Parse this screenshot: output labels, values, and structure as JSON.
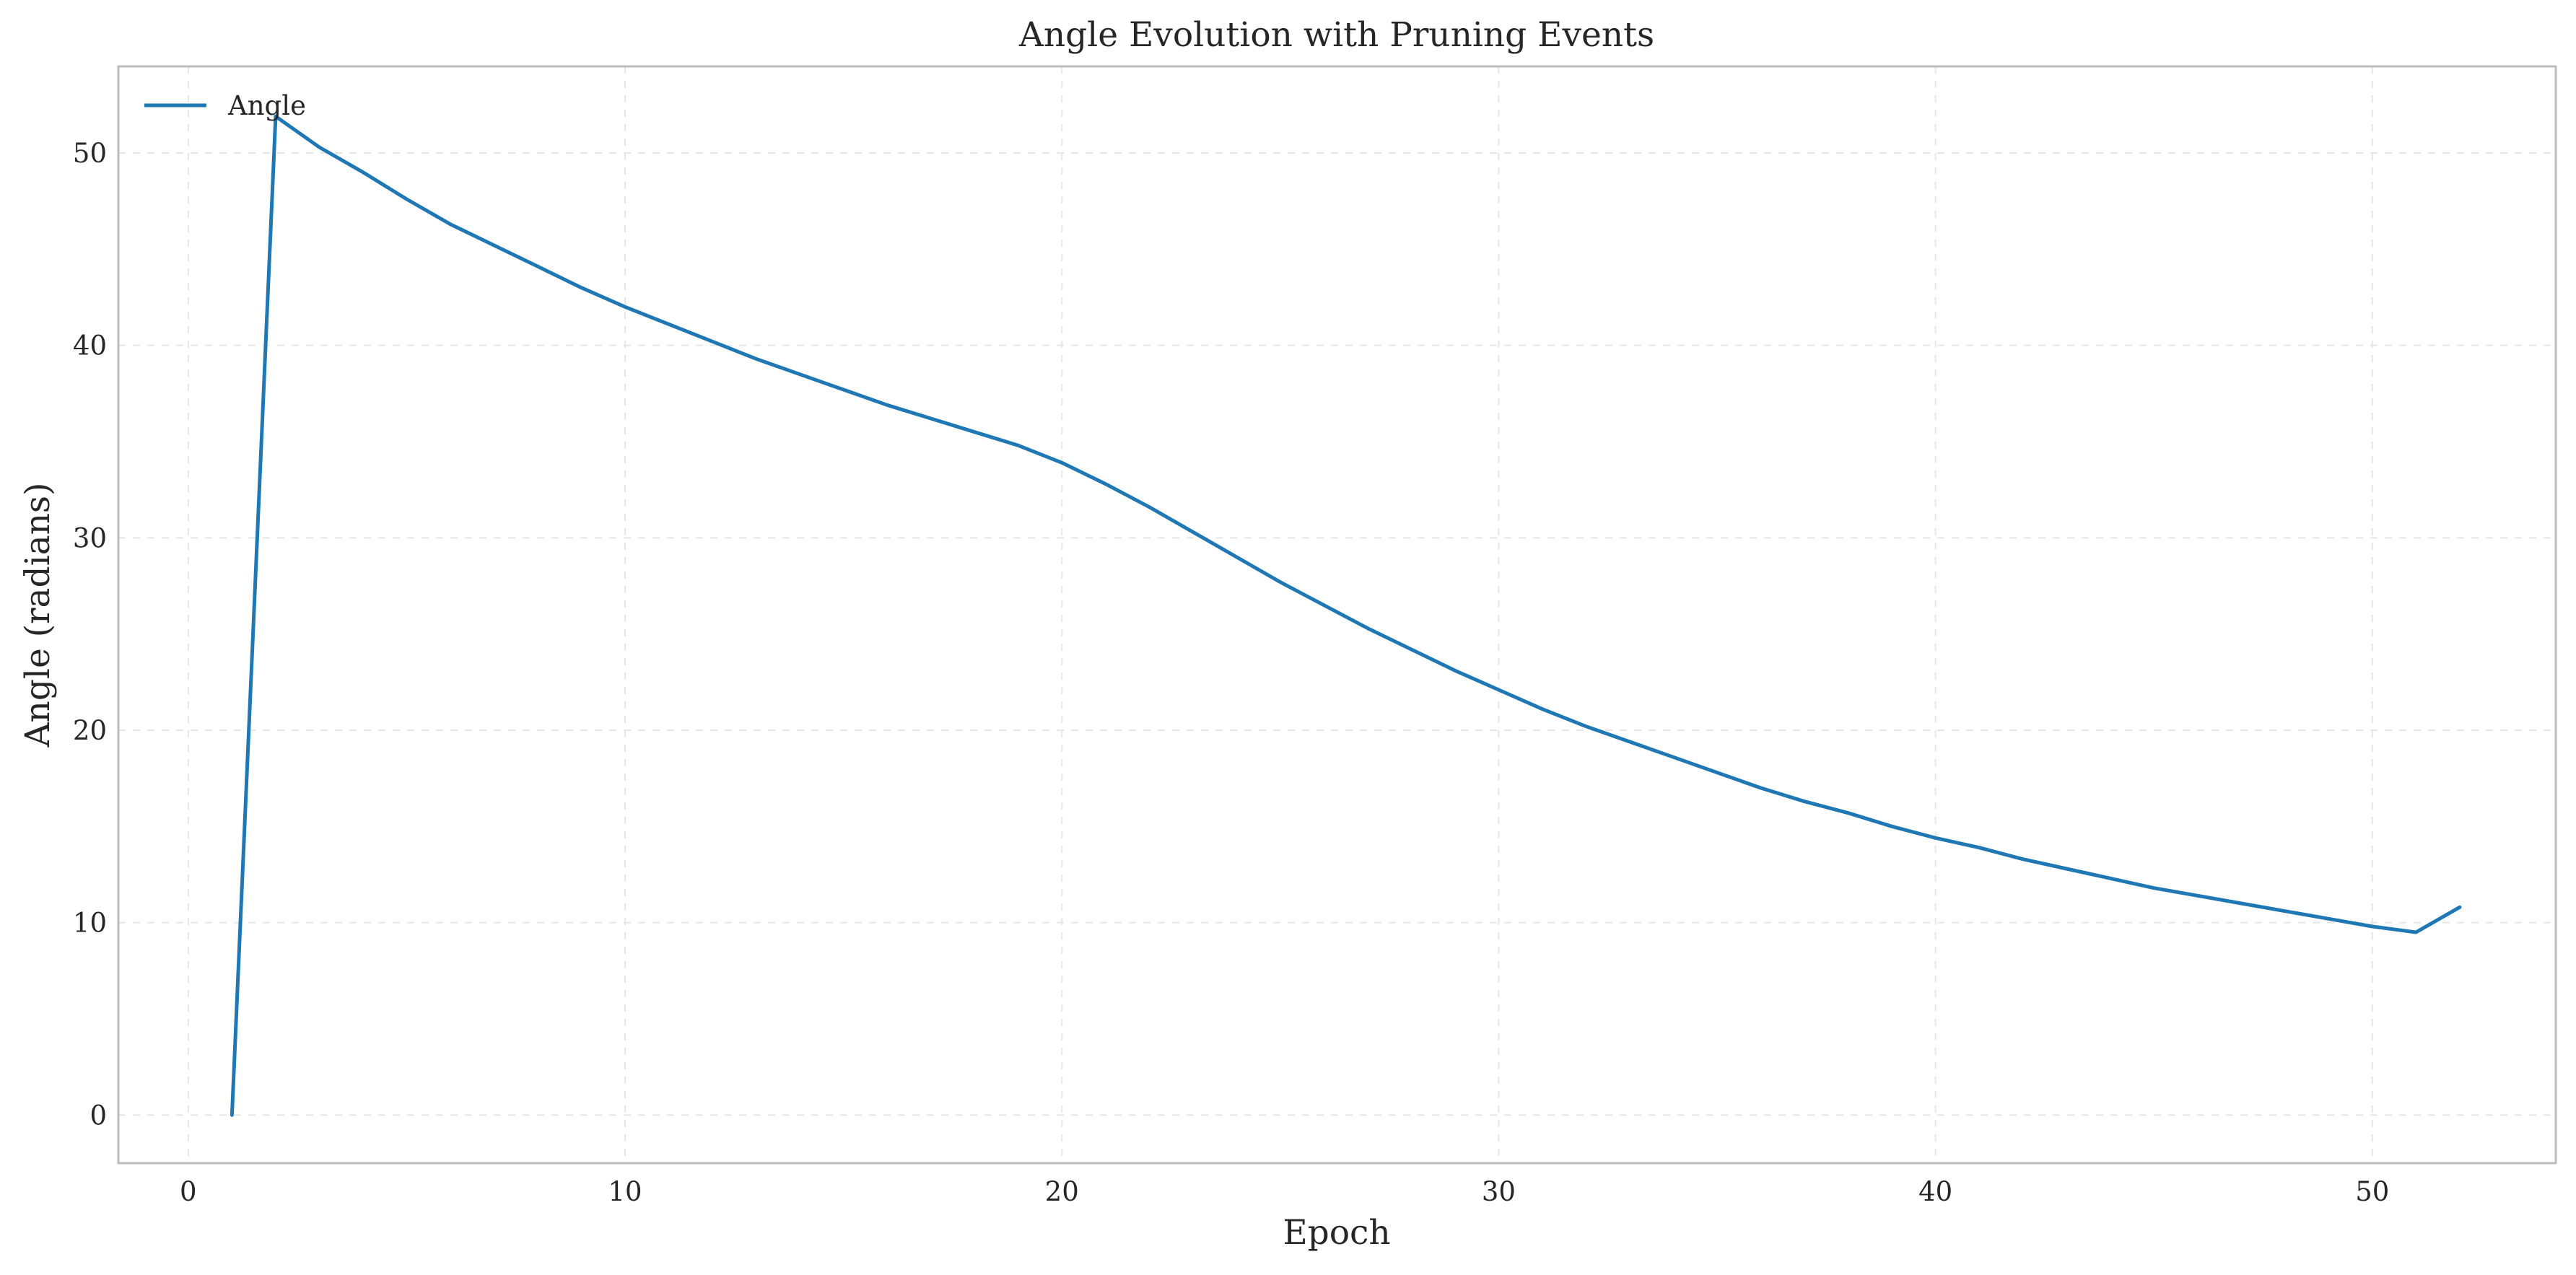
{
  "chart_data": {
    "type": "line",
    "title": "Angle Evolution with Pruning Events",
    "xlabel": "Epoch",
    "ylabel": "Angle (radians)",
    "xlim": [
      -1.6,
      54.2
    ],
    "ylim": [
      -2.5,
      54.5
    ],
    "xticks": [
      0,
      10,
      20,
      30,
      40,
      50
    ],
    "yticks": [
      0,
      10,
      20,
      30,
      40,
      50
    ],
    "grid": true,
    "legend": "upper left",
    "series": [
      {
        "name": "Angle",
        "color": "#1f77b4",
        "x": [
          1,
          2,
          3,
          4,
          5,
          6,
          7,
          8,
          9,
          10,
          11,
          12,
          13,
          14,
          15,
          16,
          17,
          18,
          19,
          20,
          21,
          22,
          23,
          24,
          25,
          26,
          27,
          28,
          29,
          30,
          31,
          32,
          33,
          34,
          35,
          36,
          37,
          38,
          39,
          40,
          41,
          42,
          43,
          44,
          45,
          46,
          47,
          48,
          49,
          50,
          51,
          52
        ],
        "y": [
          0.0,
          51.9,
          50.3,
          49.0,
          47.6,
          46.3,
          45.2,
          44.1,
          43.0,
          42.0,
          41.1,
          40.2,
          39.3,
          38.5,
          37.7,
          36.9,
          36.2,
          35.5,
          34.8,
          33.9,
          32.8,
          31.6,
          30.3,
          29.0,
          27.7,
          26.5,
          25.3,
          24.2,
          23.1,
          22.1,
          21.1,
          20.2,
          19.4,
          18.6,
          17.8,
          17.0,
          16.3,
          15.7,
          15.0,
          14.4,
          13.9,
          13.3,
          12.8,
          12.3,
          11.8,
          11.4,
          11.0,
          10.6,
          10.2,
          9.8,
          9.5,
          10.8
        ]
      }
    ]
  }
}
